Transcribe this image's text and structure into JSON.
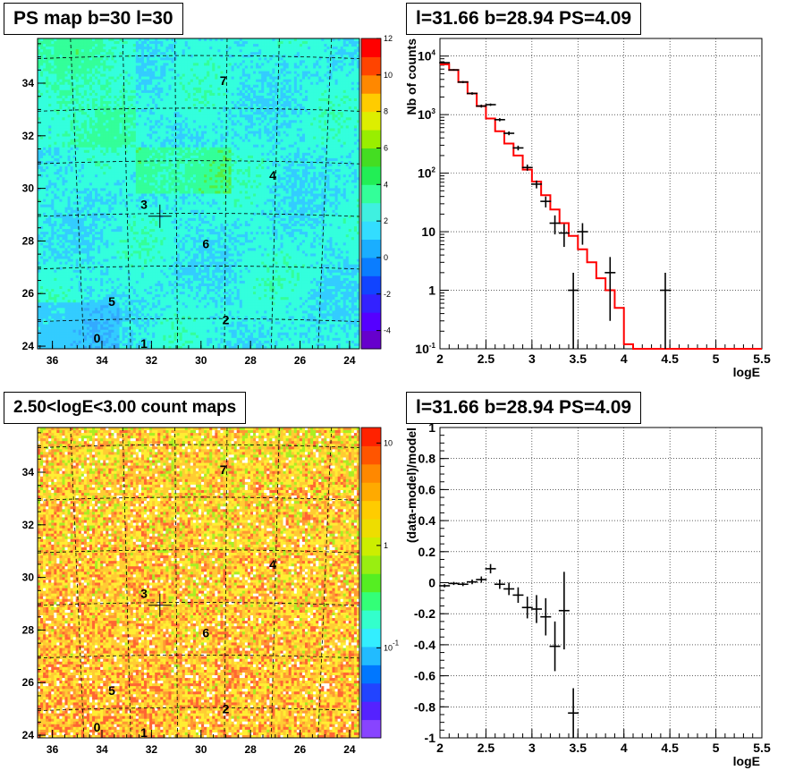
{
  "panels": {
    "top_left_title": "PS map b=30 l=30",
    "top_right_title": "l=31.66 b=28.94 PS=4.09",
    "bottom_left_title": "2.50<logE<3.00 count maps",
    "bottom_right_title": "l=31.66 b=28.94 PS=4.09"
  },
  "chart_data": [
    {
      "type": "heatmap",
      "title": "PS map b=30 l=30",
      "x_ticks": [
        "36",
        "34",
        "32",
        "30",
        "28",
        "26",
        "24"
      ],
      "y_ticks": [
        "24",
        "26",
        "28",
        "30",
        "32",
        "34"
      ],
      "xlim": [
        36.6,
        23.6
      ],
      "ylim": [
        23.9,
        35.7
      ],
      "colorbar_ticks": [
        "12",
        "10",
        "8",
        "6",
        "4",
        "2",
        "0",
        "-2",
        "-4"
      ],
      "colorbar_range": [
        -5,
        12
      ],
      "source_labels": [
        {
          "label": "7",
          "l": 29.1,
          "b": 34.1
        },
        {
          "label": "4",
          "l": 27.1,
          "b": 30.5
        },
        {
          "label": "3",
          "l": 32.3,
          "b": 29.4
        },
        {
          "label": "6",
          "l": 29.8,
          "b": 27.9
        },
        {
          "label": "5",
          "l": 33.6,
          "b": 25.7
        },
        {
          "label": "2",
          "l": 29.0,
          "b": 25.0
        },
        {
          "label": "0",
          "l": 34.2,
          "b": 24.3
        },
        {
          "label": "1",
          "l": 32.3,
          "b": 24.1
        }
      ],
      "marker": {
        "l": 31.66,
        "b": 28.94
      }
    },
    {
      "type": "line",
      "title": "l=31.66 b=28.94 PS=4.09",
      "xlabel": "logE",
      "ylabel": "Nb of counts",
      "xlim": [
        2,
        5.5
      ],
      "ylim": [
        0.1,
        20000
      ],
      "yscale": "log",
      "x_ticks": [
        "2",
        "2.5",
        "3",
        "3.5",
        "4",
        "4.5",
        "5",
        "5.5"
      ],
      "y_ticks": [
        "10^{-1}",
        "1",
        "10",
        "10^{2}",
        "10^{3}",
        "10^{4}"
      ],
      "model_step": {
        "edges": [
          2.0,
          2.1,
          2.2,
          2.3,
          2.4,
          2.5,
          2.6,
          2.7,
          2.8,
          2.9,
          3.0,
          3.1,
          3.2,
          3.3,
          3.4,
          3.5,
          3.6,
          3.7,
          3.8,
          3.9,
          4.0,
          4.1,
          5.5
        ],
        "values": [
          7200,
          5800,
          3600,
          2300,
          1400,
          860,
          520,
          320,
          200,
          115,
          72,
          42,
          24,
          14,
          8.5,
          5.0,
          3.0,
          1.6,
          1.0,
          0.5,
          0.12,
          0.1
        ]
      },
      "data_points": [
        {
          "x": 2.05,
          "y": 7700,
          "err": 200
        },
        {
          "x": 2.15,
          "y": 5800,
          "err": 180
        },
        {
          "x": 2.25,
          "y": 3600,
          "err": 150
        },
        {
          "x": 2.35,
          "y": 2300,
          "err": 110
        },
        {
          "x": 2.45,
          "y": 1400,
          "err": 80
        },
        {
          "x": 2.55,
          "y": 1480,
          "err": 70
        },
        {
          "x": 2.65,
          "y": 820,
          "err": 50
        },
        {
          "x": 2.75,
          "y": 480,
          "err": 35
        },
        {
          "x": 2.85,
          "y": 270,
          "err": 25
        },
        {
          "x": 2.95,
          "y": 125,
          "err": 15
        },
        {
          "x": 3.05,
          "y": 65,
          "err": 10
        },
        {
          "x": 3.15,
          "y": 33,
          "err": 7
        },
        {
          "x": 3.25,
          "y": 14,
          "err": 5
        },
        {
          "x": 3.35,
          "y": 9.5,
          "err": 4
        },
        {
          "x": 3.45,
          "y": 1.0,
          "err": 0.99
        },
        {
          "x": 3.55,
          "y": 10,
          "err": 4
        },
        {
          "x": 3.85,
          "y": 2.0,
          "err": 1.7
        },
        {
          "x": 4.45,
          "y": 1.0,
          "err": 0.99
        }
      ]
    },
    {
      "type": "heatmap",
      "title": "2.50<logE<3.00 count maps",
      "x_ticks": [
        "36",
        "34",
        "32",
        "30",
        "28",
        "26",
        "24"
      ],
      "y_ticks": [
        "24",
        "26",
        "28",
        "30",
        "32",
        "34"
      ],
      "xlim": [
        36.6,
        23.6
      ],
      "ylim": [
        23.9,
        35.7
      ],
      "colorbar_ticks": [
        "10",
        "1",
        "10^{-1}"
      ],
      "colorbar_scale": "log",
      "source_labels": [
        {
          "label": "7",
          "l": 29.1,
          "b": 34.1
        },
        {
          "label": "4",
          "l": 27.1,
          "b": 30.5
        },
        {
          "label": "3",
          "l": 32.3,
          "b": 29.4
        },
        {
          "label": "6",
          "l": 29.8,
          "b": 27.9
        },
        {
          "label": "5",
          "l": 33.6,
          "b": 25.7
        },
        {
          "label": "2",
          "l": 29.0,
          "b": 25.0
        },
        {
          "label": "0",
          "l": 34.2,
          "b": 24.3
        },
        {
          "label": "1",
          "l": 32.3,
          "b": 24.1
        }
      ],
      "marker": {
        "l": 31.66,
        "b": 28.94
      }
    },
    {
      "type": "scatter",
      "title": "l=31.66 b=28.94 PS=4.09",
      "xlabel": "logE",
      "ylabel": "(data-model)/model",
      "xlim": [
        2,
        5.5
      ],
      "ylim": [
        -1,
        1
      ],
      "x_ticks": [
        "2",
        "2.5",
        "3",
        "3.5",
        "4",
        "4.5",
        "5",
        "5.5"
      ],
      "y_ticks": [
        "-1",
        "-0.8",
        "-0.6",
        "-0.4",
        "-0.2",
        "0",
        "0.2",
        "0.4",
        "0.6",
        "0.8",
        "1"
      ],
      "data_points": [
        {
          "x": 2.05,
          "y": -0.02,
          "err": 0.01
        },
        {
          "x": 2.15,
          "y": -0.005,
          "err": 0.01
        },
        {
          "x": 2.25,
          "y": -0.01,
          "err": 0.012
        },
        {
          "x": 2.35,
          "y": 0.005,
          "err": 0.015
        },
        {
          "x": 2.45,
          "y": 0.02,
          "err": 0.02
        },
        {
          "x": 2.55,
          "y": 0.09,
          "err": 0.03
        },
        {
          "x": 2.65,
          "y": -0.01,
          "err": 0.03
        },
        {
          "x": 2.75,
          "y": -0.04,
          "err": 0.04
        },
        {
          "x": 2.85,
          "y": -0.08,
          "err": 0.05
        },
        {
          "x": 2.95,
          "y": -0.16,
          "err": 0.07
        },
        {
          "x": 3.05,
          "y": -0.17,
          "err": 0.09
        },
        {
          "x": 3.15,
          "y": -0.22,
          "err": 0.12
        },
        {
          "x": 3.25,
          "y": -0.41,
          "err": 0.16
        },
        {
          "x": 3.35,
          "y": -0.18,
          "err": 0.25
        },
        {
          "x": 3.45,
          "y": -0.84,
          "err": 0.16
        }
      ]
    }
  ],
  "colors": {
    "model_line": "#ff0000",
    "data": "#000000",
    "frame": "#000000"
  }
}
